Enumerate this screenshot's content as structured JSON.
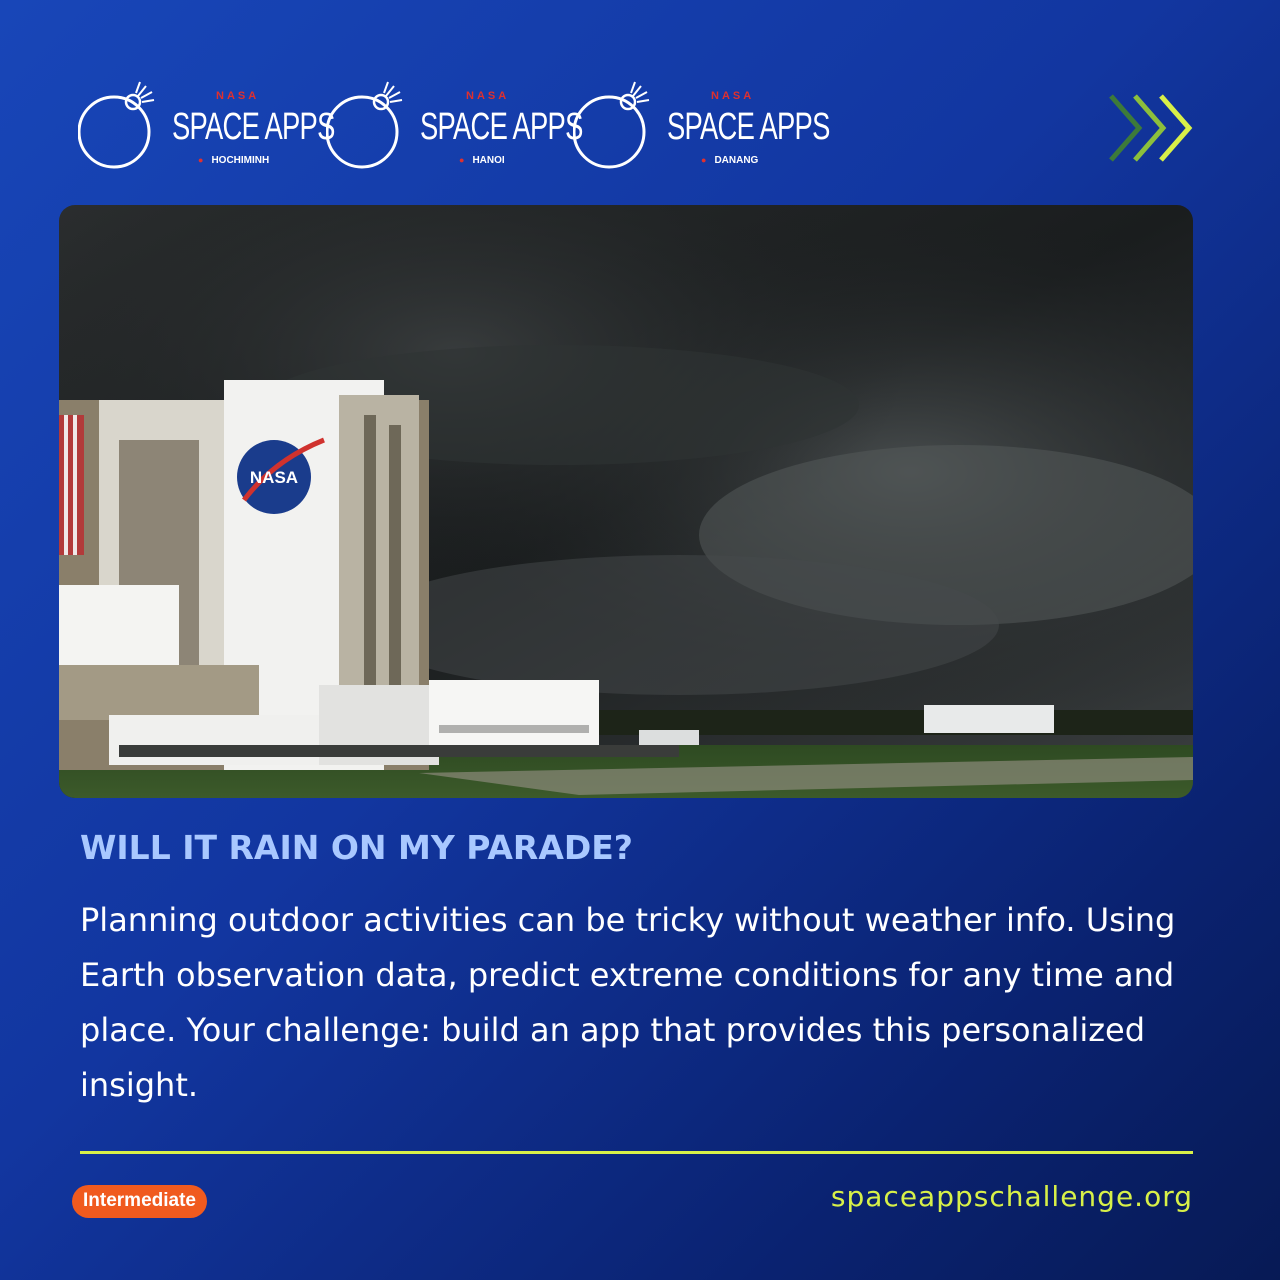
{
  "logos": [
    {
      "agency": "NASA",
      "brand": "SPACE APPS",
      "city": "HOCHIMINH"
    },
    {
      "agency": "NASA",
      "brand": "SPACE APPS",
      "city": "HANOI"
    },
    {
      "agency": "NASA",
      "brand": "SPACE APPS",
      "city": "DANANG"
    }
  ],
  "photo": {
    "building_logo_text": "NASA"
  },
  "challenge": {
    "title": "WILL IT RAIN ON MY PARADE?",
    "description": "Planning outdoor activities can be tricky without weather info. Using Earth observation data, predict extreme conditions for any time and place. Your challenge: build an app that provides this personalized insight."
  },
  "level": "Intermediate",
  "website": "spaceappschallenge.org",
  "colors": {
    "background": "#1236a0",
    "accent_green": "#d8f048",
    "title_blue": "#a9c8ff",
    "badge_orange": "#f05a1e",
    "nasa_red": "#e0302e"
  },
  "icons": [
    "space-apps-logo-mark",
    "location-pin-icon",
    "chevrons-right-icon"
  ]
}
